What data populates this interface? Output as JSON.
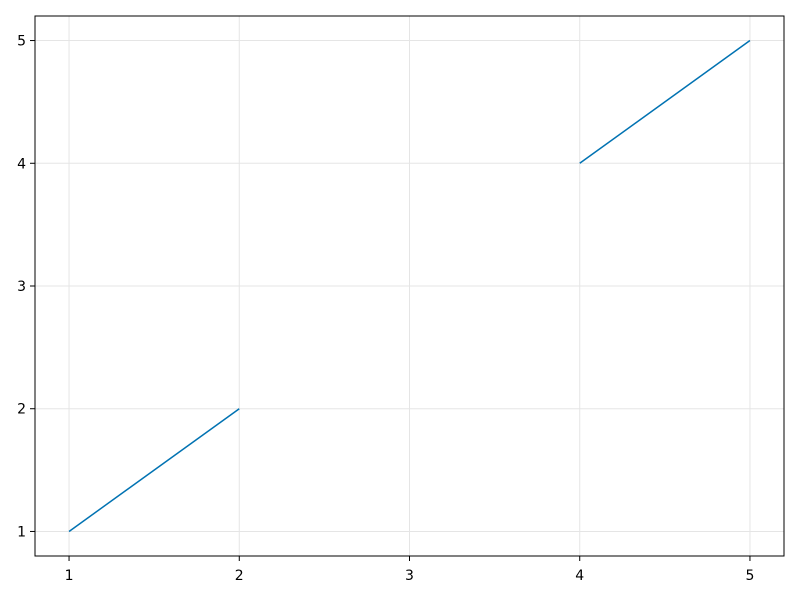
{
  "chart_data": {
    "type": "line",
    "title": "",
    "xlabel": "",
    "ylabel": "",
    "x": [
      1,
      2,
      3,
      4,
      5
    ],
    "series": [
      {
        "values": [
          1,
          2,
          null,
          4,
          5
        ],
        "color": "#0072B2"
      }
    ],
    "xlim": [
      0.8,
      5.2
    ],
    "ylim": [
      0.8,
      5.2
    ],
    "xticks": [
      1,
      2,
      3,
      4,
      5
    ],
    "yticks": [
      1,
      2,
      3,
      4,
      5
    ],
    "xtick_labels": [
      "1",
      "2",
      "3",
      "4",
      "5"
    ],
    "ytick_labels": [
      "1",
      "2",
      "3",
      "4",
      "5"
    ],
    "grid": true,
    "legend": "none"
  }
}
